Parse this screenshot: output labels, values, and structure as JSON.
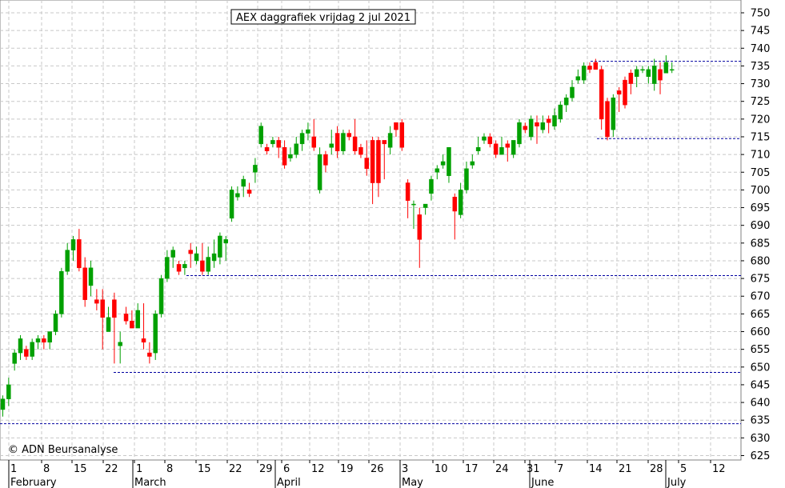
{
  "chart_data": {
    "type": "candlestick",
    "title": "AEX daggrafiek vrijdag 2 jul 2021",
    "copyright": "© ADN Beursanalyse",
    "ylim": [
      622,
      755
    ],
    "y_ticks": [
      625,
      630,
      635,
      640,
      645,
      650,
      655,
      660,
      665,
      670,
      675,
      680,
      685,
      690,
      695,
      700,
      705,
      710,
      715,
      720,
      725,
      730,
      735,
      740,
      745,
      750
    ],
    "grid": true,
    "x_day_labels": [
      "1",
      "8",
      "15",
      "22",
      "1",
      "8",
      "15",
      "22",
      "29",
      "6",
      "12",
      "19",
      "26",
      "3",
      "10",
      "17",
      "24",
      "31",
      "7",
      "14",
      "21",
      "28",
      "5",
      "12"
    ],
    "x_month_labels": [
      "February",
      "March",
      "April",
      "May",
      "June",
      "July"
    ],
    "up_color": "#00a000",
    "down_color": "#ff0000",
    "reference_line_color": "#0000a0",
    "reference_levels": [
      634,
      648.5,
      675.8,
      714.5,
      736.3
    ],
    "candles": [
      [
        638,
        641,
        636,
        642
      ],
      [
        641,
        645,
        639,
        647
      ],
      [
        651,
        654,
        649,
        655
      ],
      [
        654,
        658,
        652,
        659
      ],
      [
        655,
        653,
        652,
        656
      ],
      [
        653,
        657,
        652,
        658
      ],
      [
        657,
        658,
        655,
        659
      ],
      [
        658,
        657,
        655,
        659
      ],
      [
        657,
        660,
        655,
        660
      ],
      [
        660,
        665,
        659,
        666
      ],
      [
        665,
        677,
        664,
        678
      ],
      [
        677,
        683,
        676,
        685
      ],
      [
        683,
        686,
        680,
        687
      ],
      [
        686,
        678,
        677,
        689
      ],
      [
        678,
        669,
        667,
        681
      ],
      [
        673,
        678,
        670,
        680
      ],
      [
        669,
        668,
        666,
        672
      ],
      [
        669,
        664,
        655,
        672
      ],
      [
        660,
        664,
        660,
        667
      ],
      [
        669,
        664,
        651,
        671
      ],
      [
        656,
        657,
        651,
        660
      ],
      [
        665,
        663,
        662,
        667
      ],
      [
        663,
        661,
        661,
        666
      ],
      [
        661,
        666,
        662,
        668
      ],
      [
        658,
        657,
        655,
        668
      ],
      [
        654,
        653,
        651,
        657
      ],
      [
        654,
        665,
        652,
        666
      ],
      [
        665,
        675,
        664,
        676
      ],
      [
        675,
        681,
        674,
        683
      ],
      [
        681,
        683,
        678,
        684
      ],
      [
        679,
        677,
        676,
        680
      ],
      [
        678,
        679,
        676,
        680
      ],
      [
        683,
        682,
        678,
        685
      ],
      [
        680,
        682,
        679,
        684
      ],
      [
        680,
        677,
        676,
        685
      ],
      [
        677,
        681,
        676,
        684
      ],
      [
        680,
        682,
        678,
        686
      ],
      [
        681,
        687,
        679,
        688
      ],
      [
        685,
        686,
        680,
        687
      ],
      [
        692,
        700,
        691,
        701
      ],
      [
        698,
        699,
        697,
        701
      ],
      [
        701,
        703,
        698,
        704
      ],
      [
        700,
        699,
        698,
        702
      ],
      [
        705,
        707,
        702,
        709
      ],
      [
        713,
        718,
        712,
        719
      ],
      [
        712,
        711,
        710,
        713
      ],
      [
        713,
        714,
        712,
        715
      ],
      [
        714,
        712,
        709,
        715
      ],
      [
        712,
        707,
        706,
        714
      ],
      [
        709,
        710,
        708,
        712
      ],
      [
        710,
        713,
        709,
        715
      ],
      [
        713,
        716,
        711,
        717
      ],
      [
        716,
        717,
        714,
        719
      ],
      [
        715,
        712,
        711,
        720
      ],
      [
        700,
        710,
        699,
        712
      ],
      [
        710,
        707,
        705,
        711
      ],
      [
        712,
        713,
        710,
        717
      ],
      [
        716,
        711,
        709,
        718
      ],
      [
        711,
        716,
        710,
        717
      ],
      [
        716,
        715,
        714,
        717
      ],
      [
        715,
        711,
        710,
        720
      ],
      [
        712,
        710,
        709,
        713
      ],
      [
        709,
        706,
        704,
        714
      ],
      [
        714,
        702,
        696,
        715
      ],
      [
        714,
        702,
        698,
        715
      ],
      [
        714,
        713,
        703,
        714
      ],
      [
        712,
        716,
        710,
        718
      ],
      [
        719,
        717,
        715,
        719
      ],
      [
        719,
        712,
        711,
        720
      ],
      [
        702,
        697,
        692,
        703
      ],
      [
        696,
        696,
        689,
        697
      ],
      [
        693,
        686,
        678,
        695
      ],
      [
        695,
        696,
        693,
        696
      ],
      [
        699,
        703,
        697,
        704
      ],
      [
        705,
        706,
        703,
        707
      ],
      [
        707,
        708,
        706,
        710
      ],
      [
        704,
        712,
        702,
        712
      ],
      [
        698,
        694,
        686,
        699
      ],
      [
        693,
        700,
        692,
        702
      ],
      [
        700,
        706,
        699,
        708
      ],
      [
        707,
        708,
        706,
        710
      ],
      [
        711,
        712,
        710,
        715
      ],
      [
        714,
        715,
        713,
        716
      ],
      [
        715,
        713,
        712,
        716
      ],
      [
        713,
        710,
        709,
        714
      ],
      [
        710,
        712,
        710,
        715
      ],
      [
        713,
        712,
        708,
        714
      ],
      [
        710,
        714,
        709,
        714
      ],
      [
        713,
        719,
        712,
        720
      ],
      [
        718,
        717,
        716,
        719
      ],
      [
        715,
        720,
        714,
        721
      ],
      [
        719,
        718,
        713,
        721
      ],
      [
        717,
        719,
        716,
        721
      ],
      [
        720,
        719,
        716,
        721
      ],
      [
        718,
        721,
        717,
        723
      ],
      [
        720,
        724,
        719,
        725
      ],
      [
        724,
        726,
        722,
        727
      ],
      [
        726,
        729,
        725,
        731
      ],
      [
        731,
        732,
        730,
        734
      ],
      [
        731,
        735,
        730,
        736
      ],
      [
        735,
        734,
        733,
        736
      ],
      [
        736,
        734,
        734,
        737
      ],
      [
        734,
        720,
        717,
        735
      ],
      [
        725,
        715,
        714,
        726
      ],
      [
        717,
        726,
        715,
        727
      ],
      [
        728,
        727,
        722,
        729
      ],
      [
        731,
        724,
        723,
        732
      ],
      [
        733,
        730,
        727,
        734
      ],
      [
        732,
        734,
        729,
        735
      ],
      [
        734,
        734,
        733,
        735
      ],
      [
        732,
        734,
        730,
        735
      ],
      [
        730,
        735,
        728,
        737
      ],
      [
        734,
        731,
        727,
        736
      ],
      [
        733,
        736,
        733,
        738
      ],
      [
        734,
        734,
        733,
        736
      ]
    ]
  }
}
